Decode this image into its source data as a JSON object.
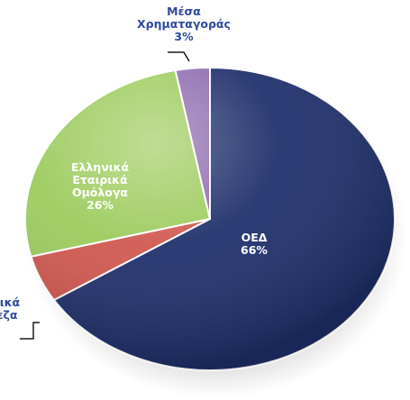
{
  "chart_data": {
    "type": "pie",
    "slices": [
      {
        "label_lines": [
          "ΟΕΔ"
        ],
        "value": 66,
        "value_label": "66%",
        "color": "#1e2f6b"
      },
      {
        "label_lines": [
          "Ελληνικά",
          "Τράπεζα"
        ],
        "value": 5,
        "value_label": "…",
        "color": "#d0574f"
      },
      {
        "label_lines": [
          "Ελληνικά",
          "Εταιρικά",
          "Ομόλογα"
        ],
        "value": 26,
        "value_label": "26%",
        "color": "#9ccb5c"
      },
      {
        "label_lines": [
          "Μέσα",
          "Χρηματαγοράς"
        ],
        "value": 3,
        "value_label": "3%",
        "color": "#8d6aae"
      }
    ],
    "start_angle_deg": 0,
    "direction": "clockwise",
    "legend": "none",
    "title": ""
  }
}
